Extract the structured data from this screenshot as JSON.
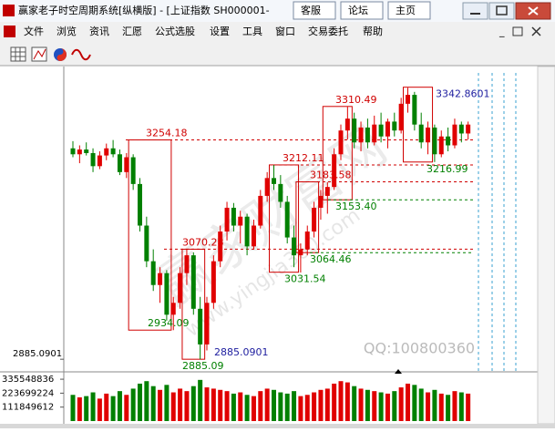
{
  "window": {
    "title": "赢家老子时空周期系统[纵横版] - [上证指数  SH000001-",
    "links": [
      "客服",
      "论坛",
      "主页"
    ]
  },
  "menu": [
    "文件",
    "浏览",
    "资讯",
    "汇愿",
    "公式选股",
    "设置",
    "工具",
    "窗口",
    "交易委托",
    "帮助"
  ],
  "watermarks": [
    "赢家财富网",
    "www.yingjia360.com",
    "QQ:100800360"
  ],
  "chart_data": {
    "type": "candlestick",
    "up_color": "#e00000",
    "down_color": "#008000",
    "ylim": [
      2870,
      3370
    ],
    "yticks": [
      2885.0901
    ],
    "open": [
      3240,
      3230,
      3238,
      3232,
      3210,
      3228,
      3240,
      3230,
      3200,
      3225,
      3180,
      3110,
      3050,
      3010,
      3030,
      2960,
      2980,
      3030,
      3060,
      2970,
      2910,
      2980,
      3050,
      3100,
      3140,
      3110,
      3125,
      3075,
      3110,
      3160,
      3190,
      3180,
      3150,
      3090,
      3060,
      3070,
      3100,
      3140,
      3160,
      3175,
      3230,
      3270,
      3290,
      3250,
      3275,
      3250,
      3280,
      3260,
      3285,
      3270,
      3315,
      3330,
      3280,
      3250,
      3275,
      3230,
      3260,
      3245,
      3280,
      3265
    ],
    "high": [
      3252,
      3245,
      3250,
      3240,
      3235,
      3248,
      3254,
      3238,
      3232,
      3230,
      3190,
      3125,
      3070,
      3040,
      3035,
      2990,
      3040,
      3070,
      3065,
      2990,
      2990,
      3060,
      3110,
      3150,
      3148,
      3135,
      3130,
      3120,
      3170,
      3200,
      3212,
      3195,
      3160,
      3110,
      3080,
      3110,
      3150,
      3170,
      3183,
      3240,
      3280,
      3310,
      3300,
      3285,
      3290,
      3295,
      3300,
      3290,
      3300,
      3325,
      3342,
      3335,
      3300,
      3285,
      3280,
      3270,
      3275,
      3290,
      3285,
      3285
    ],
    "low": [
      3225,
      3215,
      3228,
      3200,
      3205,
      3220,
      3225,
      3195,
      3190,
      3170,
      3100,
      3040,
      3000,
      2980,
      2950,
      2934,
      2970,
      3010,
      2960,
      2885,
      2900,
      2970,
      3040,
      3085,
      3100,
      3080,
      3060,
      3070,
      3105,
      3150,
      3170,
      3140,
      3080,
      3040,
      3031,
      3060,
      3090,
      3120,
      3130,
      3170,
      3220,
      3255,
      3240,
      3235,
      3240,
      3245,
      3250,
      3240,
      3260,
      3265,
      3300,
      3270,
      3240,
      3230,
      3217,
      3225,
      3235,
      3240,
      3250,
      3255
    ],
    "close": [
      3230,
      3238,
      3232,
      3210,
      3228,
      3240,
      3230,
      3200,
      3225,
      3180,
      3110,
      3050,
      3010,
      3030,
      2960,
      2980,
      3030,
      3060,
      2970,
      2910,
      2980,
      3050,
      3100,
      3140,
      3110,
      3125,
      3075,
      3110,
      3160,
      3190,
      3180,
      3150,
      3090,
      3060,
      3070,
      3100,
      3140,
      3160,
      3175,
      3230,
      3270,
      3290,
      3250,
      3275,
      3250,
      3280,
      3260,
      3285,
      3270,
      3315,
      3330,
      3280,
      3250,
      3275,
      3230,
      3260,
      3245,
      3280,
      3265,
      3280
    ],
    "volume": [
      210000000,
      190000000,
      200000000,
      230000000,
      180000000,
      220000000,
      200000000,
      240000000,
      210000000,
      260000000,
      300000000,
      320000000,
      280000000,
      250000000,
      290000000,
      230000000,
      260000000,
      240000000,
      280000000,
      330000000,
      270000000,
      260000000,
      250000000,
      240000000,
      220000000,
      230000000,
      210000000,
      200000000,
      240000000,
      260000000,
      250000000,
      230000000,
      220000000,
      240000000,
      200000000,
      210000000,
      230000000,
      250000000,
      260000000,
      300000000,
      320000000,
      310000000,
      280000000,
      260000000,
      250000000,
      240000000,
      230000000,
      220000000,
      240000000,
      270000000,
      300000000,
      290000000,
      260000000,
      230000000,
      250000000,
      220000000,
      210000000,
      240000000,
      230000000,
      220000000
    ],
    "volume_ylim": [
      0,
      380000000
    ],
    "volume_yticks": [
      335548836,
      223699224,
      111849612
    ],
    "levels": [
      {
        "value": 3254.18,
        "color": "#d00000"
      },
      {
        "value": 3212.11,
        "color": "#d00000"
      },
      {
        "value": 3310.49,
        "color": "#d00000"
      },
      {
        "value": 3183.58,
        "color": "#d00000"
      },
      {
        "value": 3153.4,
        "label": "3153.40",
        "color": "#008000"
      },
      {
        "value": 3070.28,
        "color": "#d00000"
      },
      {
        "value": 3064.46,
        "color": "#008000"
      },
      {
        "value": 3031.54,
        "color": "#008000"
      },
      {
        "value": 2934.09,
        "color": "#008000"
      },
      {
        "value": 2885.09,
        "color": "#008000"
      },
      {
        "value": 3342.8601,
        "color": "#2020a0"
      },
      {
        "value": 2885.0901,
        "color": "#2020a0"
      },
      {
        "value": 3216.99,
        "color": "#008000"
      }
    ]
  }
}
